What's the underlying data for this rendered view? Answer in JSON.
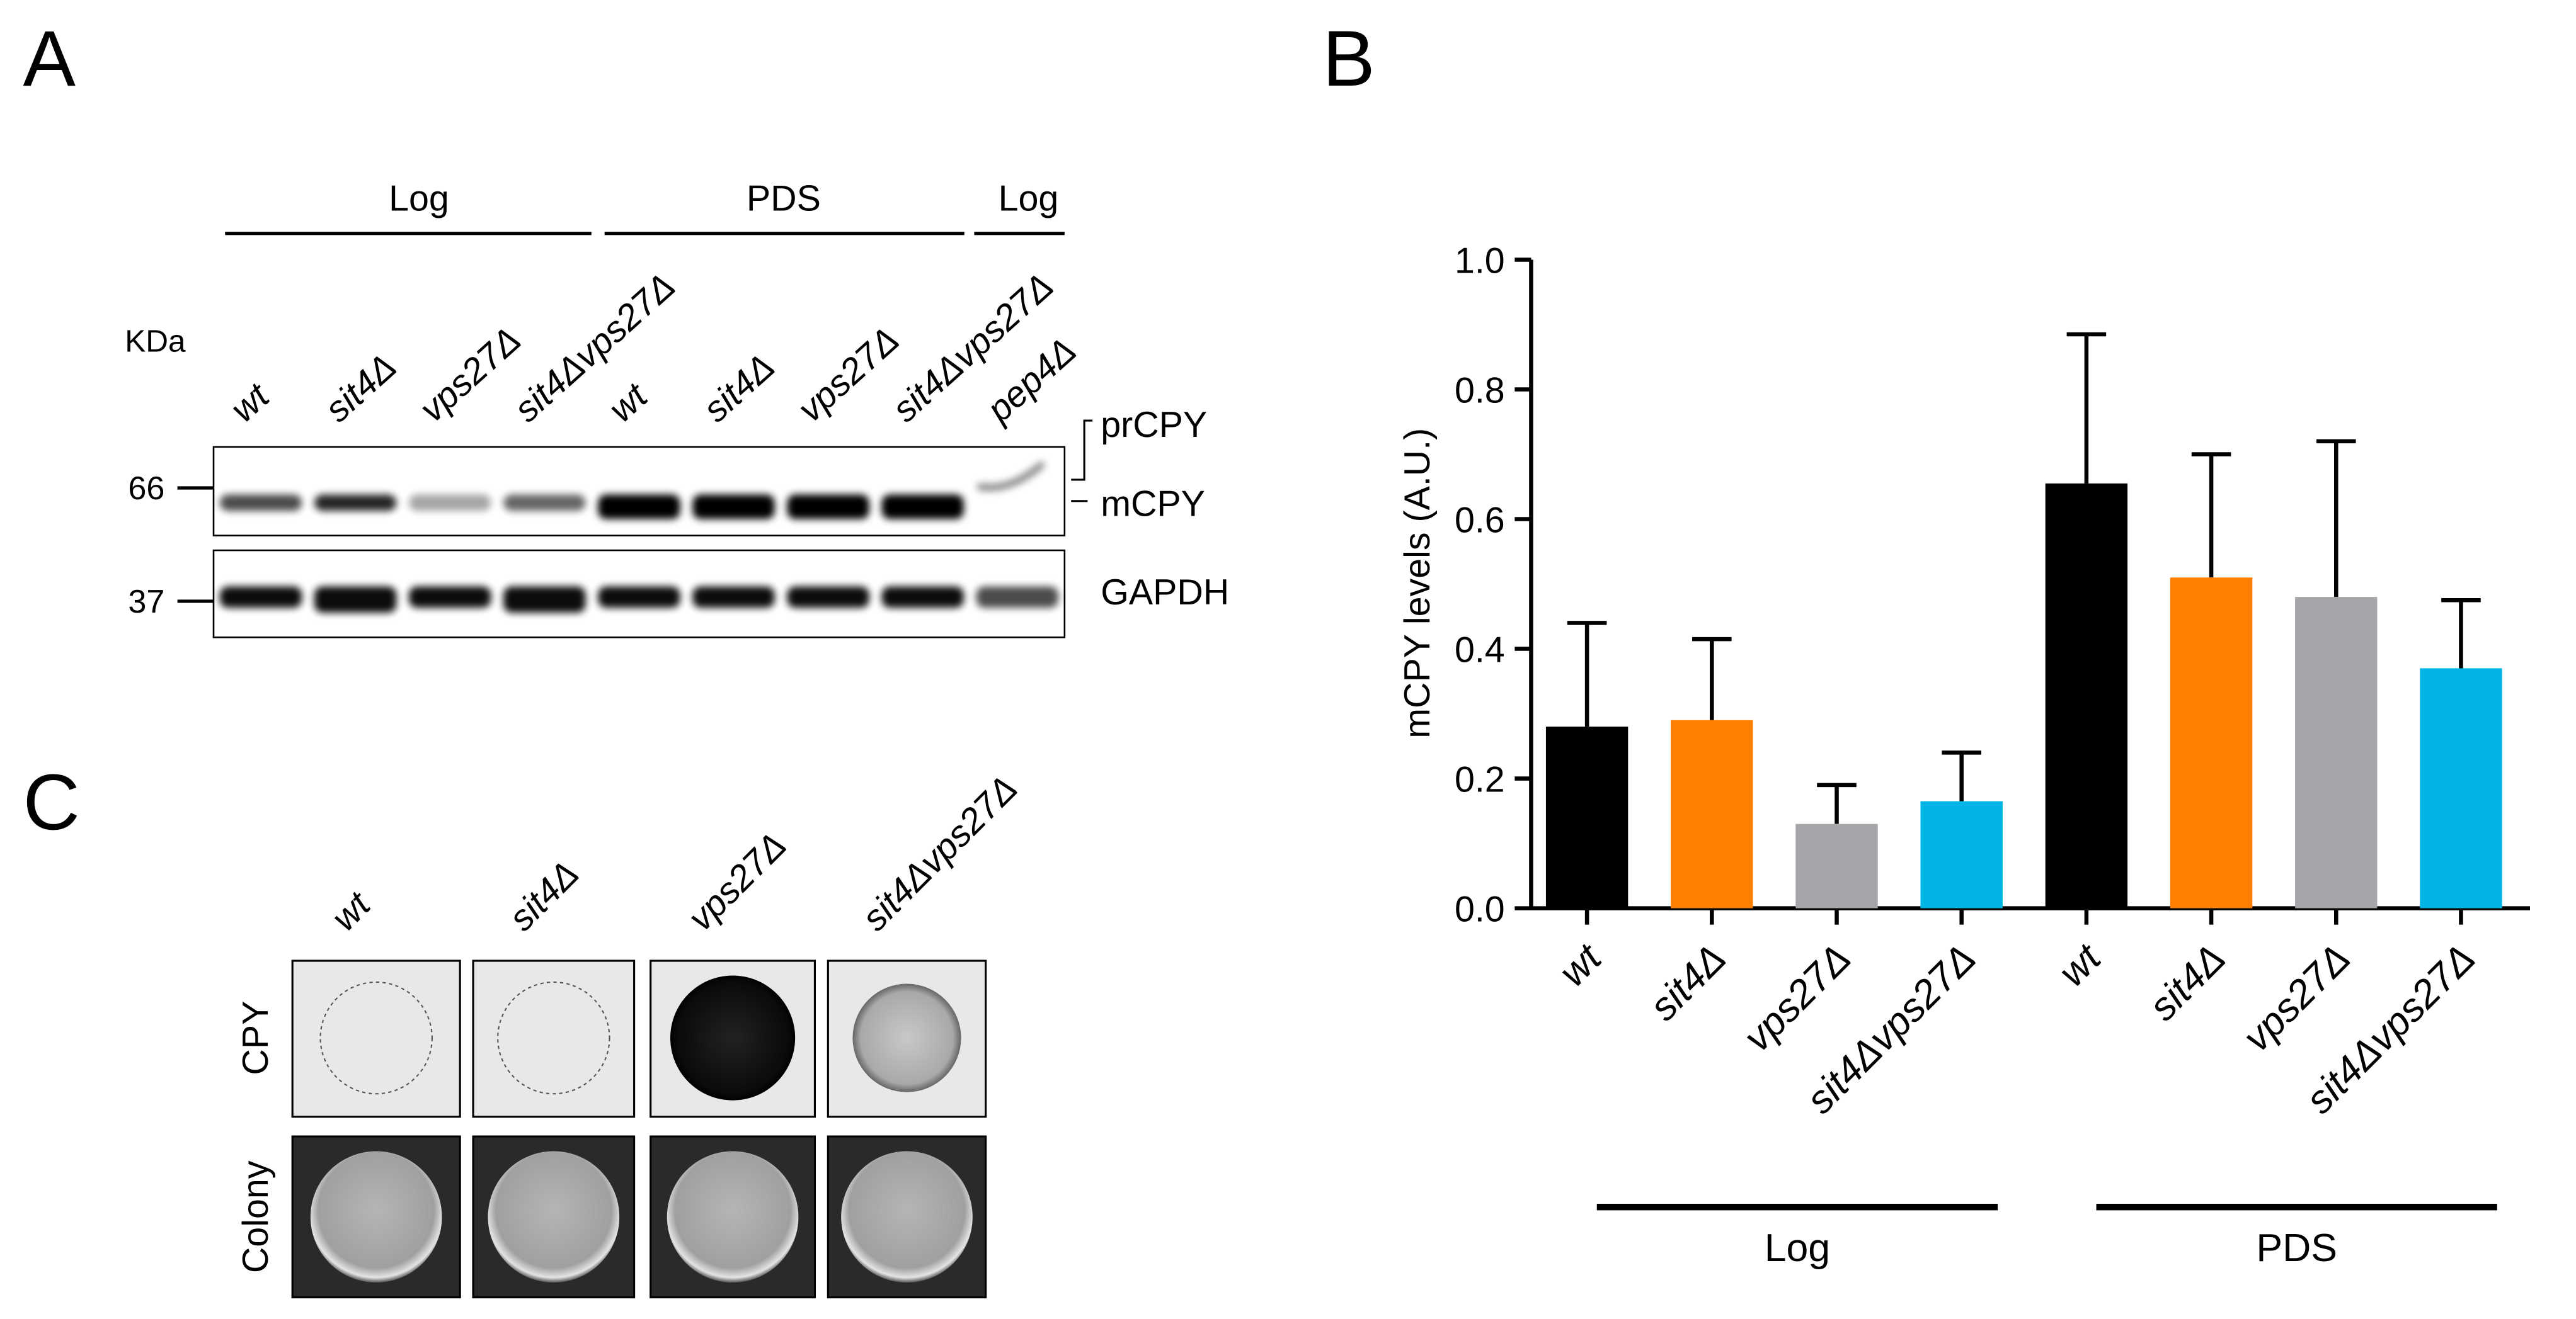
{
  "panel_labels": [
    "A",
    "B",
    "C"
  ],
  "blot": {
    "group_headers": [
      "Log",
      "PDS",
      "Log"
    ],
    "unit_label": "KDa",
    "lanes": [
      "wt",
      "sit4Δ",
      "vps27Δ",
      "sit4Δvps27Δ",
      "wt",
      "sit4Δ",
      "vps27Δ",
      "sit4Δvps27Δ",
      "pep4Δ"
    ],
    "markers": [
      "66",
      "37"
    ],
    "band_labels": [
      "prCPY",
      "mCPY",
      "GAPDH"
    ]
  },
  "chart_data": {
    "type": "bar",
    "y_label": "mCPY levels (A.U.)",
    "categories": [
      "wt",
      "sit4Δ",
      "vps27Δ",
      "sit4Δvps27Δ",
      "wt",
      "sit4Δ",
      "vps27Δ",
      "sit4Δvps27Δ"
    ],
    "groups": [
      "Log",
      "PDS"
    ],
    "values": [
      0.28,
      0.29,
      0.13,
      0.165,
      0.655,
      0.51,
      0.48,
      0.37
    ],
    "errors": [
      0.16,
      0.125,
      0.06,
      0.075,
      0.23,
      0.19,
      0.24,
      0.105
    ],
    "colors": [
      "#000000",
      "#ff8000",
      "#a6a6aa",
      "#00b4e6",
      "#000000",
      "#ff8000",
      "#a6a6aa",
      "#00b4e6"
    ],
    "ylim": [
      0,
      1.0
    ],
    "yticks": [
      {
        "value": 0,
        "label": "0.0"
      },
      0.2,
      0.4,
      0.6,
      0.8,
      {
        "value": 1.0,
        "label": "1.0"
      }
    ]
  },
  "spot_assay": {
    "strains": [
      "wt",
      "sit4Δ",
      "vps27Δ",
      "sit4Δvps27Δ"
    ],
    "rows": [
      "CPY",
      "Colony"
    ]
  }
}
